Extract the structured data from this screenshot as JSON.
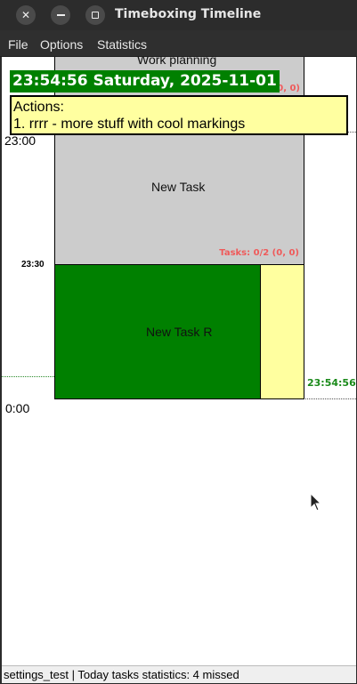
{
  "window": {
    "title": "Timeboxing Timeline",
    "buttons": {
      "close": "✕",
      "minimize": "",
      "maximize": ""
    }
  },
  "menu": [
    "File",
    "Options",
    "Statistics"
  ],
  "timeline": {
    "labels": {
      "t2300": "23:00",
      "t2330": "23:30",
      "t0000": "0:00"
    },
    "now_label": "23:54:56",
    "clock_banner": "23:54:56 Saturday, 2025-11-01",
    "actions": {
      "header": "Actions:",
      "items": [
        "1. rrrr - more stuff with cool markings"
      ]
    },
    "tasks": [
      {
        "title": "Work planning",
        "stats": "Tasks: 0/1 (0, 0)",
        "color": "#cccccc"
      },
      {
        "title": "New Task",
        "stats": "Tasks: 0/2 (0, 0)",
        "color": "#cccccc"
      },
      {
        "title": "New Task R",
        "stats": "",
        "color": "#008000"
      }
    ],
    "side_color": "#ffff9f"
  },
  "status": "settings_test | Today tasks statistics: 4 missed",
  "colors": {
    "accent": "#008000",
    "stats_red": "#ef5a5a",
    "actions_bg": "#ffffa0"
  }
}
